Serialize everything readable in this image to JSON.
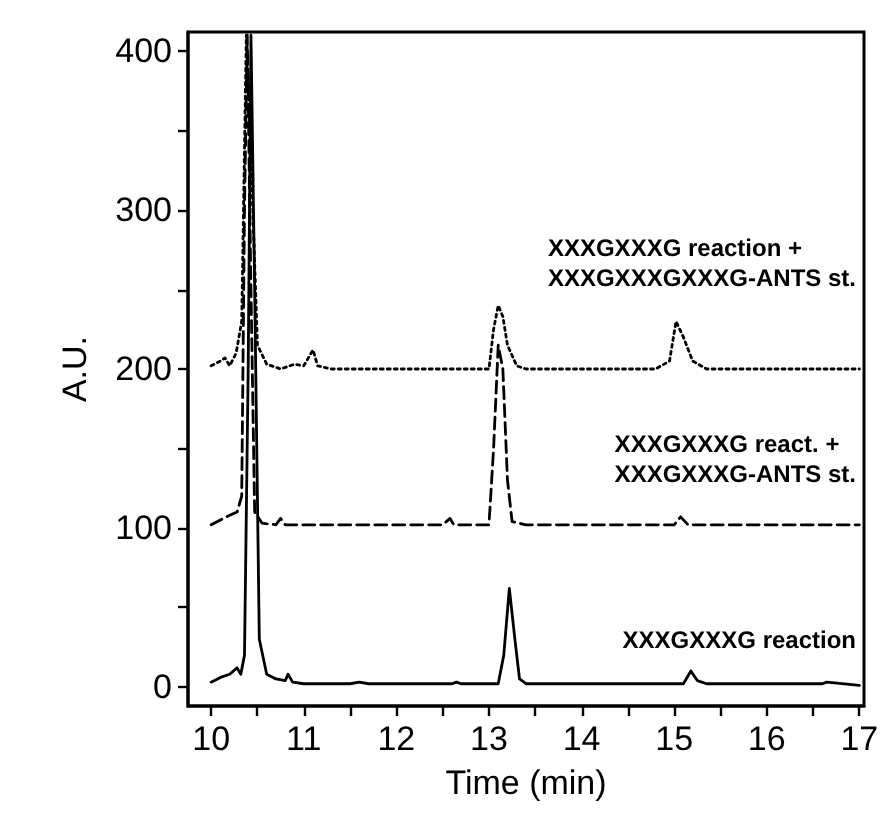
{
  "chart_data": {
    "type": "line",
    "xlabel": "Time (min)",
    "ylabel": "A.U.",
    "xlim": [
      9.75,
      17.05
    ],
    "ylim": [
      -12,
      412
    ],
    "xticks": [
      10,
      {
        "value": 10.5,
        "label": null
      },
      11,
      {
        "value": 11.5,
        "label": null
      },
      12,
      {
        "value": 12.5,
        "label": null
      },
      13,
      {
        "value": 13.5,
        "label": null
      },
      14,
      {
        "value": 14.5,
        "label": null
      },
      15,
      {
        "value": 15.5,
        "label": null
      },
      16,
      {
        "value": 16.5,
        "label": null
      },
      17
    ],
    "yticks": [
      0,
      {
        "value": 50,
        "label": null
      },
      100,
      {
        "value": 150,
        "label": null
      },
      200,
      {
        "value": 250,
        "label": null
      },
      300,
      {
        "value": 350,
        "label": null
      },
      400
    ],
    "grid": false,
    "legend": false,
    "marker": "none",
    "series": [
      {
        "name": "XXXGXXXG reaction",
        "color": "#000000",
        "line_style": "solid",
        "x": [
          10.0,
          10.1,
          10.2,
          10.28,
          10.32,
          10.36,
          10.4,
          10.43,
          10.47,
          10.52,
          10.6,
          10.7,
          10.8,
          10.83,
          10.88,
          11.0,
          11.5,
          11.6,
          11.7,
          12.6,
          12.65,
          12.7,
          13.1,
          13.16,
          13.22,
          13.28,
          13.33,
          13.4,
          15.1,
          15.18,
          15.25,
          15.35,
          16.6,
          16.65,
          17.0
        ],
        "values": [
          3,
          6,
          8,
          12,
          8,
          20,
          200,
          410,
          250,
          30,
          8,
          5,
          4,
          8,
          3,
          2,
          2,
          3,
          2,
          2,
          3,
          2,
          2,
          20,
          62,
          30,
          5,
          2,
          2,
          10,
          4,
          2,
          2,
          3,
          1
        ]
      },
      {
        "name": "XXXGXXXG react. +\nXXXGXXXG-ANTS st.",
        "color": "#000000",
        "line_style": "dashed",
        "x": [
          10.0,
          10.1,
          10.2,
          10.28,
          10.33,
          10.36,
          10.39,
          10.43,
          10.47,
          10.55,
          10.7,
          10.75,
          10.8,
          12.5,
          12.58,
          12.62,
          13.0,
          13.05,
          13.1,
          13.15,
          13.2,
          13.25,
          13.4,
          15.0,
          15.07,
          15.15,
          17.0
        ],
        "values": [
          102,
          105,
          108,
          110,
          120,
          300,
          410,
          250,
          110,
          103,
          102,
          106,
          102,
          102,
          106,
          102,
          102,
          150,
          215,
          200,
          130,
          104,
          102,
          102,
          107,
          102,
          102
        ]
      },
      {
        "name": "XXXGXXXG reaction +\nXXXGXXXGXXXG-ANTS st.",
        "color": "#000000",
        "line_style": "dotted",
        "x": [
          10.0,
          10.1,
          10.15,
          10.2,
          10.27,
          10.33,
          10.38,
          10.45,
          10.5,
          10.6,
          10.75,
          10.9,
          11.0,
          11.1,
          11.15,
          11.3,
          13.0,
          13.05,
          13.1,
          13.15,
          13.2,
          13.3,
          13.4,
          14.8,
          14.95,
          15.02,
          15.1,
          15.2,
          15.35,
          17.0
        ],
        "values": [
          202,
          205,
          207,
          202,
          210,
          230,
          410,
          300,
          215,
          203,
          200,
          203,
          202,
          212,
          202,
          200,
          200,
          225,
          240,
          233,
          215,
          202,
          200,
          200,
          205,
          230,
          220,
          205,
          200,
          200
        ]
      }
    ]
  }
}
